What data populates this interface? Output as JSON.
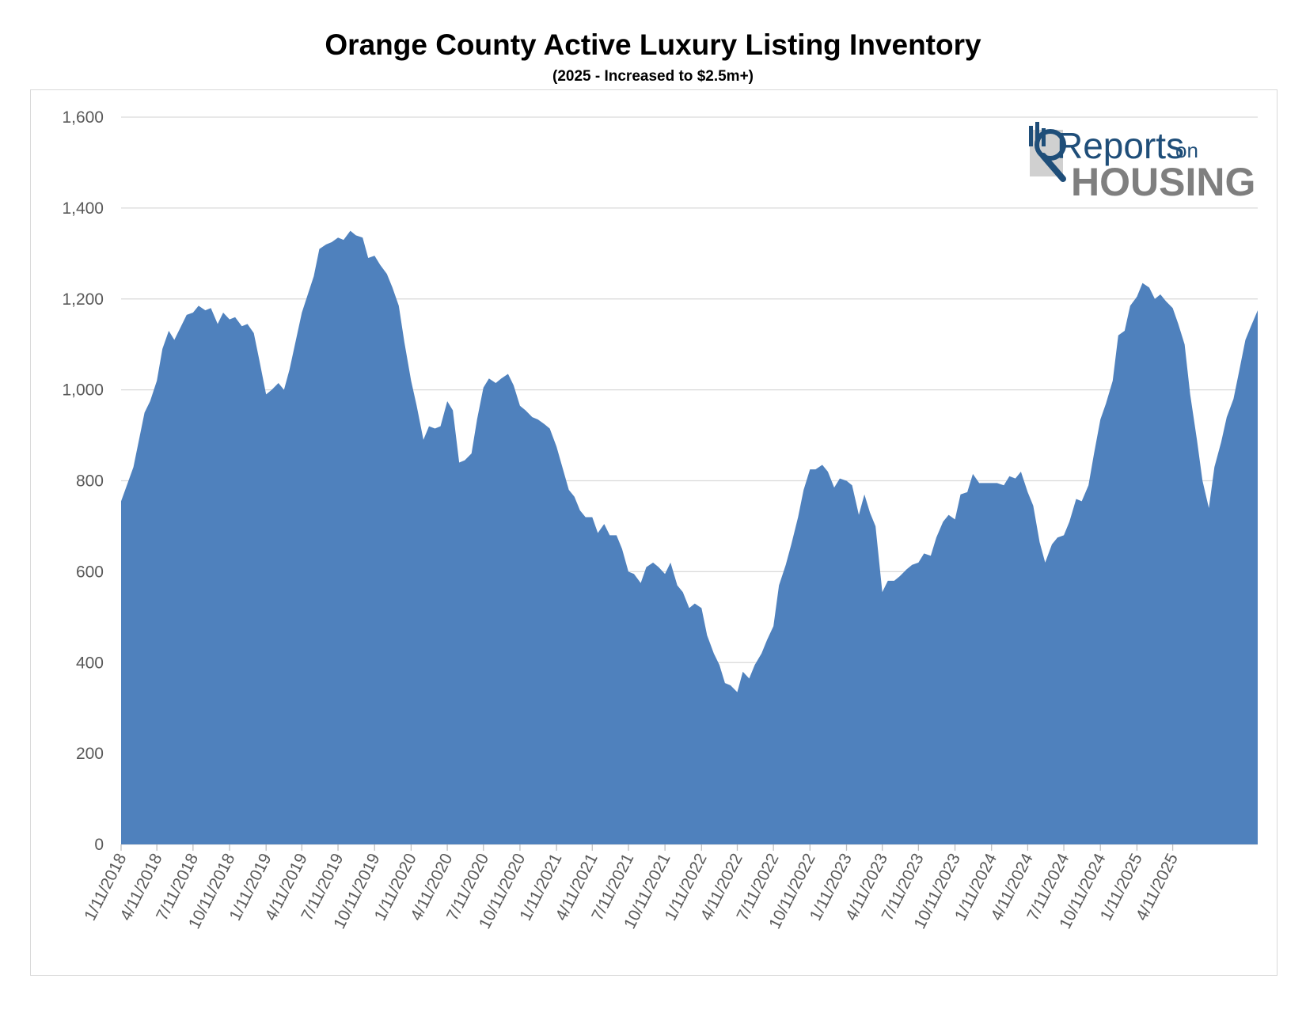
{
  "chart_data": {
    "type": "area",
    "title": "Orange County Active Luxury Listing Inventory",
    "subtitle": "(2025 - Increased to $2.5m+)",
    "xlabel": "",
    "ylabel": "",
    "ylim": [
      0,
      1600
    ],
    "yticks": [
      "0",
      "200",
      "400",
      "600",
      "800",
      "1,000",
      "1,200",
      "1,400",
      "1,600"
    ],
    "xticks": [
      "1/11/2018",
      "4/11/2018",
      "7/11/2018",
      "10/11/2018",
      "1/11/2019",
      "4/11/2019",
      "7/11/2019",
      "10/11/2019",
      "1/11/2020",
      "4/11/2020",
      "7/11/2020",
      "10/11/2020",
      "1/11/2021",
      "4/11/2021",
      "7/11/2021",
      "10/11/2021",
      "1/11/2022",
      "4/11/2022",
      "7/11/2022",
      "10/11/2022",
      "1/11/2023",
      "4/11/2023",
      "7/11/2023",
      "10/11/2023",
      "1/11/2024",
      "4/11/2024",
      "7/11/2024",
      "10/11/2024",
      "1/11/2025",
      "4/11/2025"
    ],
    "grid": true,
    "legend": "none",
    "color": "#4f81bd",
    "series": [
      {
        "name": "",
        "values": [
          {
            "x": "2018-01-11",
            "y": 755
          },
          {
            "x": "2018-02-11",
            "y": 830
          },
          {
            "x": "2018-03-11",
            "y": 950
          },
          {
            "x": "2018-03-25",
            "y": 975
          },
          {
            "x": "2018-04-11",
            "y": 1020
          },
          {
            "x": "2018-04-25",
            "y": 1090
          },
          {
            "x": "2018-05-11",
            "y": 1130
          },
          {
            "x": "2018-05-25",
            "y": 1110
          },
          {
            "x": "2018-06-11",
            "y": 1140
          },
          {
            "x": "2018-06-25",
            "y": 1165
          },
          {
            "x": "2018-07-11",
            "y": 1170
          },
          {
            "x": "2018-07-25",
            "y": 1185
          },
          {
            "x": "2018-08-11",
            "y": 1175
          },
          {
            "x": "2018-08-25",
            "y": 1180
          },
          {
            "x": "2018-09-11",
            "y": 1145
          },
          {
            "x": "2018-09-25",
            "y": 1170
          },
          {
            "x": "2018-10-11",
            "y": 1155
          },
          {
            "x": "2018-10-25",
            "y": 1160
          },
          {
            "x": "2018-11-11",
            "y": 1140
          },
          {
            "x": "2018-11-25",
            "y": 1145
          },
          {
            "x": "2018-12-11",
            "y": 1125
          },
          {
            "x": "2018-12-25",
            "y": 1065
          },
          {
            "x": "2019-01-11",
            "y": 990
          },
          {
            "x": "2019-01-25",
            "y": 1000
          },
          {
            "x": "2019-02-11",
            "y": 1015
          },
          {
            "x": "2019-02-25",
            "y": 1000
          },
          {
            "x": "2019-03-11",
            "y": 1045
          },
          {
            "x": "2019-04-11",
            "y": 1170
          },
          {
            "x": "2019-05-11",
            "y": 1250
          },
          {
            "x": "2019-05-25",
            "y": 1310
          },
          {
            "x": "2019-06-11",
            "y": 1320
          },
          {
            "x": "2019-06-25",
            "y": 1325
          },
          {
            "x": "2019-07-11",
            "y": 1335
          },
          {
            "x": "2019-07-25",
            "y": 1330
          },
          {
            "x": "2019-08-11",
            "y": 1350
          },
          {
            "x": "2019-08-25",
            "y": 1340
          },
          {
            "x": "2019-09-11",
            "y": 1335
          },
          {
            "x": "2019-09-25",
            "y": 1290
          },
          {
            "x": "2019-10-11",
            "y": 1295
          },
          {
            "x": "2019-10-25",
            "y": 1275
          },
          {
            "x": "2019-11-11",
            "y": 1255
          },
          {
            "x": "2019-11-25",
            "y": 1225
          },
          {
            "x": "2019-12-11",
            "y": 1185
          },
          {
            "x": "2019-12-25",
            "y": 1105
          },
          {
            "x": "2020-01-11",
            "y": 1020
          },
          {
            "x": "2020-01-25",
            "y": 965
          },
          {
            "x": "2020-02-11",
            "y": 890
          },
          {
            "x": "2020-02-25",
            "y": 920
          },
          {
            "x": "2020-03-11",
            "y": 915
          },
          {
            "x": "2020-03-25",
            "y": 920
          },
          {
            "x": "2020-04-11",
            "y": 975
          },
          {
            "x": "2020-04-25",
            "y": 955
          },
          {
            "x": "2020-05-11",
            "y": 840
          },
          {
            "x": "2020-05-25",
            "y": 845
          },
          {
            "x": "2020-06-11",
            "y": 860
          },
          {
            "x": "2020-06-25",
            "y": 935
          },
          {
            "x": "2020-07-11",
            "y": 1005
          },
          {
            "x": "2020-07-25",
            "y": 1025
          },
          {
            "x": "2020-08-11",
            "y": 1015
          },
          {
            "x": "2020-08-25",
            "y": 1025
          },
          {
            "x": "2020-09-11",
            "y": 1035
          },
          {
            "x": "2020-09-25",
            "y": 1010
          },
          {
            "x": "2020-10-11",
            "y": 965
          },
          {
            "x": "2020-10-25",
            "y": 955
          },
          {
            "x": "2020-11-11",
            "y": 940
          },
          {
            "x": "2020-11-25",
            "y": 935
          },
          {
            "x": "2020-12-11",
            "y": 925
          },
          {
            "x": "2020-12-25",
            "y": 915
          },
          {
            "x": "2021-01-11",
            "y": 875
          },
          {
            "x": "2021-02-11",
            "y": 780
          },
          {
            "x": "2021-02-25",
            "y": 765
          },
          {
            "x": "2021-03-11",
            "y": 735
          },
          {
            "x": "2021-03-25",
            "y": 720
          },
          {
            "x": "2021-04-11",
            "y": 720
          },
          {
            "x": "2021-04-25",
            "y": 685
          },
          {
            "x": "2021-05-11",
            "y": 705
          },
          {
            "x": "2021-05-25",
            "y": 680
          },
          {
            "x": "2021-06-11",
            "y": 680
          },
          {
            "x": "2021-06-25",
            "y": 650
          },
          {
            "x": "2021-07-11",
            "y": 600
          },
          {
            "x": "2021-07-25",
            "y": 595
          },
          {
            "x": "2021-08-11",
            "y": 575
          },
          {
            "x": "2021-08-25",
            "y": 610
          },
          {
            "x": "2021-09-11",
            "y": 620
          },
          {
            "x": "2021-09-25",
            "y": 610
          },
          {
            "x": "2021-10-11",
            "y": 595
          },
          {
            "x": "2021-10-25",
            "y": 620
          },
          {
            "x": "2021-11-11",
            "y": 570
          },
          {
            "x": "2021-11-25",
            "y": 555
          },
          {
            "x": "2021-12-11",
            "y": 520
          },
          {
            "x": "2021-12-25",
            "y": 530
          },
          {
            "x": "2022-01-11",
            "y": 520
          },
          {
            "x": "2022-01-25",
            "y": 460
          },
          {
            "x": "2022-02-11",
            "y": 420
          },
          {
            "x": "2022-02-25",
            "y": 395
          },
          {
            "x": "2022-03-11",
            "y": 355
          },
          {
            "x": "2022-03-25",
            "y": 350
          },
          {
            "x": "2022-04-11",
            "y": 335
          },
          {
            "x": "2022-04-25",
            "y": 380
          },
          {
            "x": "2022-05-11",
            "y": 365
          },
          {
            "x": "2022-05-25",
            "y": 395
          },
          {
            "x": "2022-06-11",
            "y": 420
          },
          {
            "x": "2022-06-25",
            "y": 450
          },
          {
            "x": "2022-07-11",
            "y": 480
          },
          {
            "x": "2022-07-25",
            "y": 570
          },
          {
            "x": "2022-08-11",
            "y": 615
          },
          {
            "x": "2022-08-25",
            "y": 660
          },
          {
            "x": "2022-09-11",
            "y": 720
          },
          {
            "x": "2022-09-25",
            "y": 780
          },
          {
            "x": "2022-10-11",
            "y": 825
          },
          {
            "x": "2022-10-25",
            "y": 825
          },
          {
            "x": "2022-11-11",
            "y": 835
          },
          {
            "x": "2022-11-25",
            "y": 820
          },
          {
            "x": "2022-12-11",
            "y": 785
          },
          {
            "x": "2022-12-25",
            "y": 805
          },
          {
            "x": "2023-01-11",
            "y": 800
          },
          {
            "x": "2023-01-25",
            "y": 790
          },
          {
            "x": "2023-02-11",
            "y": 725
          },
          {
            "x": "2023-02-25",
            "y": 770
          },
          {
            "x": "2023-03-11",
            "y": 730
          },
          {
            "x": "2023-03-25",
            "y": 700
          },
          {
            "x": "2023-04-11",
            "y": 555
          },
          {
            "x": "2023-04-25",
            "y": 580
          },
          {
            "x": "2023-05-11",
            "y": 580
          },
          {
            "x": "2023-05-25",
            "y": 590
          },
          {
            "x": "2023-06-11",
            "y": 605
          },
          {
            "x": "2023-06-25",
            "y": 615
          },
          {
            "x": "2023-07-11",
            "y": 620
          },
          {
            "x": "2023-07-25",
            "y": 640
          },
          {
            "x": "2023-08-11",
            "y": 635
          },
          {
            "x": "2023-08-25",
            "y": 675
          },
          {
            "x": "2023-09-11",
            "y": 710
          },
          {
            "x": "2023-09-25",
            "y": 725
          },
          {
            "x": "2023-10-11",
            "y": 715
          },
          {
            "x": "2023-10-25",
            "y": 770
          },
          {
            "x": "2023-11-11",
            "y": 775
          },
          {
            "x": "2023-11-25",
            "y": 815
          },
          {
            "x": "2023-12-11",
            "y": 795
          },
          {
            "x": "2023-12-25",
            "y": 795
          },
          {
            "x": "2024-01-11",
            "y": 795
          },
          {
            "x": "2024-01-25",
            "y": 795
          },
          {
            "x": "2024-02-11",
            "y": 790
          },
          {
            "x": "2024-02-25",
            "y": 810
          },
          {
            "x": "2024-03-11",
            "y": 805
          },
          {
            "x": "2024-03-25",
            "y": 820
          },
          {
            "x": "2024-04-11",
            "y": 775
          },
          {
            "x": "2024-04-25",
            "y": 745
          },
          {
            "x": "2024-05-11",
            "y": 665
          },
          {
            "x": "2024-05-25",
            "y": 620
          },
          {
            "x": "2024-06-11",
            "y": 660
          },
          {
            "x": "2024-06-25",
            "y": 675
          },
          {
            "x": "2024-07-11",
            "y": 680
          },
          {
            "x": "2024-07-25",
            "y": 710
          },
          {
            "x": "2024-08-11",
            "y": 760
          },
          {
            "x": "2024-08-25",
            "y": 755
          },
          {
            "x": "2024-09-11",
            "y": 790
          },
          {
            "x": "2024-09-25",
            "y": 860
          },
          {
            "x": "2024-10-11",
            "y": 935
          },
          {
            "x": "2024-10-25",
            "y": 970
          },
          {
            "x": "2024-11-11",
            "y": 1020
          },
          {
            "x": "2024-11-25",
            "y": 1120
          },
          {
            "x": "2024-12-11",
            "y": 1130
          },
          {
            "x": "2024-12-25",
            "y": 1185
          },
          {
            "x": "2025-01-11",
            "y": 1205
          },
          {
            "x": "2025-01-25",
            "y": 1235
          },
          {
            "x": "2025-02-11",
            "y": 1225
          },
          {
            "x": "2025-02-25",
            "y": 1200
          },
          {
            "x": "2025-03-11",
            "y": 1210
          },
          {
            "x": "2025-03-25",
            "y": 1195
          },
          {
            "x": "2025-04-11",
            "y": 1180
          },
          {
            "x": "2025-04-25",
            "y": 1145
          },
          {
            "x": "2025-05-11",
            "y": 1100
          },
          {
            "x": "2025-05-25",
            "y": 990
          },
          {
            "x": "2025-06-11",
            "y": 890
          },
          {
            "x": "2025-06-25",
            "y": 800
          },
          {
            "x": "2025-07-11",
            "y": 740
          },
          {
            "x": "2025-07-25",
            "y": 830
          },
          {
            "x": "2025-08-11",
            "y": 885
          },
          {
            "x": "2025-08-25",
            "y": 940
          },
          {
            "x": "2025-09-11",
            "y": 980
          },
          {
            "x": "2025-09-25",
            "y": 1040
          },
          {
            "x": "2025-10-11",
            "y": 1110
          },
          {
            "x": "2025-10-25",
            "y": 1140
          },
          {
            "x": "2025-11-11",
            "y": 1175
          }
        ]
      }
    ]
  },
  "logo": {
    "reports": "Reports",
    "on": "on",
    "housing": "HOUSING",
    "color_primary": "#1f4e79",
    "color_secondary": "#7f7f7f",
    "icon": "magnifier-house-icon"
  }
}
